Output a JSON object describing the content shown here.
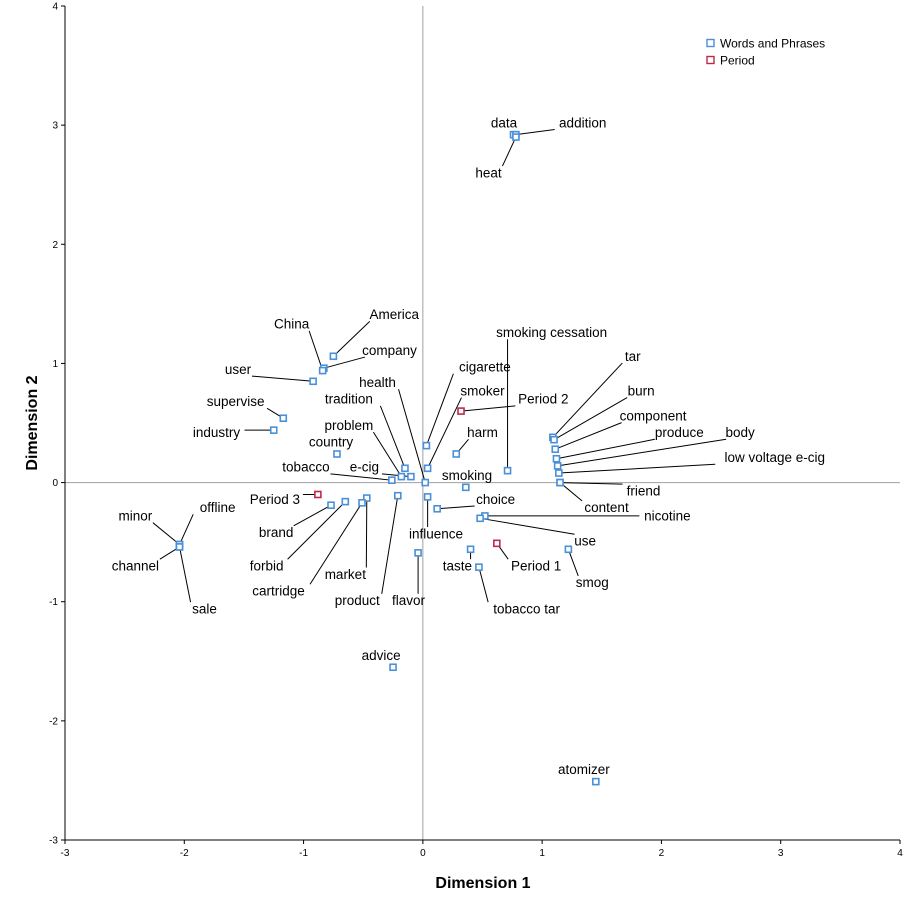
{
  "chart_data": {
    "type": "scatter",
    "xlabel": "Dimension 1",
    "ylabel": "Dimension 2",
    "xlim": [
      -3,
      4
    ],
    "ylim": [
      -3,
      4
    ],
    "xticks": [
      "-3",
      "-2",
      "-1",
      "0",
      "1",
      "2",
      "3",
      "4"
    ],
    "yticks": [
      "-3",
      "-2",
      "-1",
      "0",
      "1",
      "2",
      "3",
      "4"
    ],
    "legend_position": "top-right",
    "grid": false,
    "reference_lines": {
      "x": 0,
      "y": 0
    },
    "colors": {
      "Words and Phrases": "#4a90d9",
      "Period": "#c0284a",
      "leader": "#000000",
      "axis": "#000000",
      "reference": "#a0a0a0"
    },
    "series": [
      {
        "name": "Words and Phrases",
        "points": [
          {
            "label": "data",
            "x": 0.76,
            "y": 2.92,
            "label_x": 0.68,
            "label_y": 3.02
          },
          {
            "label": "addition",
            "x": 0.78,
            "y": 2.92,
            "label_x": 1.34,
            "label_y": 3.02
          },
          {
            "label": "heat",
            "x": 0.78,
            "y": 2.9,
            "label_x": 0.55,
            "label_y": 2.6
          },
          {
            "label": "America",
            "x": -0.75,
            "y": 1.06,
            "label_x": -0.24,
            "label_y": 1.41
          },
          {
            "label": "company",
            "x": -0.83,
            "y": 0.96,
            "label_x": -0.28,
            "label_y": 1.11
          },
          {
            "label": "China",
            "x": -0.84,
            "y": 0.94,
            "label_x": -1.1,
            "label_y": 1.33
          },
          {
            "label": "user",
            "x": -0.92,
            "y": 0.85,
            "label_x": -1.55,
            "label_y": 0.95
          },
          {
            "label": "supervise",
            "x": -1.17,
            "y": 0.54,
            "label_x": -1.57,
            "label_y": 0.68
          },
          {
            "label": "industry",
            "x": -1.25,
            "y": 0.44,
            "label_x": -1.73,
            "label_y": 0.42
          },
          {
            "label": "health",
            "x": 0.02,
            "y": 0.0,
            "label_x": -0.38,
            "label_y": 0.84
          },
          {
            "label": "tradition",
            "x": -0.15,
            "y": 0.12,
            "label_x": -0.62,
            "label_y": 0.7
          },
          {
            "label": "problem",
            "x": -0.18,
            "y": 0.05,
            "label_x": -0.62,
            "label_y": 0.48
          },
          {
            "label": "country",
            "x": -0.72,
            "y": 0.24,
            "label_x": -0.77,
            "label_y": 0.34
          },
          {
            "label": "tobacco",
            "x": -0.26,
            "y": 0.02,
            "label_x": -0.98,
            "label_y": 0.13
          },
          {
            "label": "e-cig",
            "x": -0.1,
            "y": 0.05,
            "label_x": -0.49,
            "label_y": 0.13
          },
          {
            "label": "cigarette",
            "x": 0.03,
            "y": 0.31,
            "label_x": 0.52,
            "label_y": 0.97
          },
          {
            "label": "smoker",
            "x": 0.04,
            "y": 0.12,
            "label_x": 0.5,
            "label_y": 0.77
          },
          {
            "label": "harm",
            "x": 0.28,
            "y": 0.24,
            "label_x": 0.5,
            "label_y": 0.42
          },
          {
            "label": "smoking",
            "x": 0.36,
            "y": -0.04,
            "label_x": 0.37,
            "label_y": 0.06
          },
          {
            "label": "choice",
            "x": 0.12,
            "y": -0.22,
            "label_x": 0.61,
            "label_y": -0.14
          },
          {
            "label": "influence",
            "x": 0.04,
            "y": -0.12,
            "label_x": 0.11,
            "label_y": -0.43
          },
          {
            "label": "smoking cessation",
            "x": 0.71,
            "y": 0.1,
            "label_x": 1.08,
            "label_y": 1.26
          },
          {
            "label": "tar",
            "x": 1.09,
            "y": 0.38,
            "label_x": 1.76,
            "label_y": 1.06
          },
          {
            "label": "burn",
            "x": 1.1,
            "y": 0.36,
            "label_x": 1.83,
            "label_y": 0.77
          },
          {
            "label": "component",
            "x": 1.11,
            "y": 0.28,
            "label_x": 1.93,
            "label_y": 0.56
          },
          {
            "label": "produce",
            "x": 1.12,
            "y": 0.2,
            "label_x": 2.15,
            "label_y": 0.42
          },
          {
            "label": "body",
            "x": 1.13,
            "y": 0.14,
            "label_x": 2.66,
            "label_y": 0.42
          },
          {
            "label": "low voltage e-cig",
            "x": 1.14,
            "y": 0.08,
            "label_x": 2.95,
            "label_y": 0.21
          },
          {
            "label": "friend",
            "x": 1.15,
            "y": 0.0,
            "label_x": 1.85,
            "label_y": -0.07
          },
          {
            "label": "content",
            "x": 1.15,
            "y": 0.0,
            "label_x": 1.54,
            "label_y": -0.21
          },
          {
            "label": "nicotine",
            "x": 0.52,
            "y": -0.28,
            "label_x": 2.05,
            "label_y": -0.28
          },
          {
            "label": "use",
            "x": 0.48,
            "y": -0.3,
            "label_x": 1.36,
            "label_y": -0.49
          },
          {
            "label": "smog",
            "x": 1.22,
            "y": -0.56,
            "label_x": 1.42,
            "label_y": -0.84
          },
          {
            "label": "taste",
            "x": 0.4,
            "y": -0.56,
            "label_x": 0.29,
            "label_y": -0.7
          },
          {
            "label": "tobacco tar",
            "x": 0.47,
            "y": -0.71,
            "label_x": 0.87,
            "label_y": -1.06
          },
          {
            "label": "flavor",
            "x": -0.04,
            "y": -0.59,
            "label_x": -0.12,
            "label_y": -0.99
          },
          {
            "label": "product",
            "x": -0.21,
            "y": -0.11,
            "label_x": -0.55,
            "label_y": -0.99
          },
          {
            "label": "market",
            "x": -0.47,
            "y": -0.13,
            "label_x": -0.65,
            "label_y": -0.77
          },
          {
            "label": "cartridge",
            "x": -0.51,
            "y": -0.17,
            "label_x": -1.21,
            "label_y": -0.91
          },
          {
            "label": "forbid",
            "x": -0.65,
            "y": -0.16,
            "label_x": -1.31,
            "label_y": -0.7
          },
          {
            "label": "brand",
            "x": -0.77,
            "y": -0.19,
            "label_x": -1.23,
            "label_y": -0.42
          },
          {
            "label": "minor",
            "x": -2.04,
            "y": -0.52,
            "label_x": -2.41,
            "label_y": -0.28
          },
          {
            "label": "offline",
            "x": -2.04,
            "y": -0.52,
            "label_x": -1.72,
            "label_y": -0.21
          },
          {
            "label": "channel",
            "x": -2.04,
            "y": -0.54,
            "label_x": -2.41,
            "label_y": -0.7
          },
          {
            "label": "sale",
            "x": -2.04,
            "y": -0.54,
            "label_x": -1.83,
            "label_y": -1.06
          },
          {
            "label": "advice",
            "x": -0.25,
            "y": -1.55,
            "label_x": -0.35,
            "label_y": -1.45
          },
          {
            "label": "atomizer",
            "x": 1.45,
            "y": -2.51,
            "label_x": 1.35,
            "label_y": -2.41
          }
        ]
      },
      {
        "name": "Period",
        "points": [
          {
            "label": "Period 2",
            "x": 0.32,
            "y": 0.6,
            "label_x": 1.01,
            "label_y": 0.7
          },
          {
            "label": "Period 3",
            "x": -0.88,
            "y": -0.1,
            "label_x": -1.24,
            "label_y": -0.14
          },
          {
            "label": "Period 1",
            "x": 0.62,
            "y": -0.51,
            "label_x": 0.95,
            "label_y": -0.7
          }
        ]
      }
    ]
  }
}
